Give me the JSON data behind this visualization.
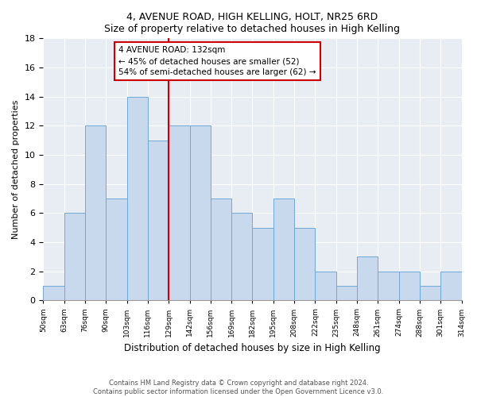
{
  "title": "4, AVENUE ROAD, HIGH KELLING, HOLT, NR25 6RD",
  "subtitle": "Size of property relative to detached houses in High Kelling",
  "xlabel": "Distribution of detached houses by size in High Kelling",
  "ylabel": "Number of detached properties",
  "bar_values": [
    1,
    6,
    12,
    7,
    14,
    11,
    12,
    12,
    7,
    6,
    5,
    7,
    5,
    2,
    1,
    3,
    2,
    2,
    1,
    2
  ],
  "bar_labels": [
    "50sqm",
    "63sqm",
    "76sqm",
    "90sqm",
    "103sqm",
    "116sqm",
    "129sqm",
    "142sqm",
    "156sqm",
    "169sqm",
    "182sqm",
    "195sqm",
    "208sqm",
    "222sqm",
    "235sqm",
    "248sqm",
    "261sqm",
    "274sqm",
    "288sqm",
    "301sqm",
    "314sqm"
  ],
  "bar_color": "#c9d9ed",
  "bar_edge_color": "#6fa8d4",
  "vline_color": "#cc0000",
  "vline_x_index": 6,
  "annotation_text": "4 AVENUE ROAD: 132sqm\n← 45% of detached houses are smaller (52)\n54% of semi-detached houses are larger (62) →",
  "annotation_box_color": "#ffffff",
  "annotation_box_edge_color": "#cc0000",
  "ylim": [
    0,
    18
  ],
  "yticks": [
    0,
    2,
    4,
    6,
    8,
    10,
    12,
    14,
    16,
    18
  ],
  "background_color": "#e8edf4",
  "footer_line1": "Contains HM Land Registry data © Crown copyright and database right 2024.",
  "footer_line2": "Contains public sector information licensed under the Open Government Licence v3.0."
}
